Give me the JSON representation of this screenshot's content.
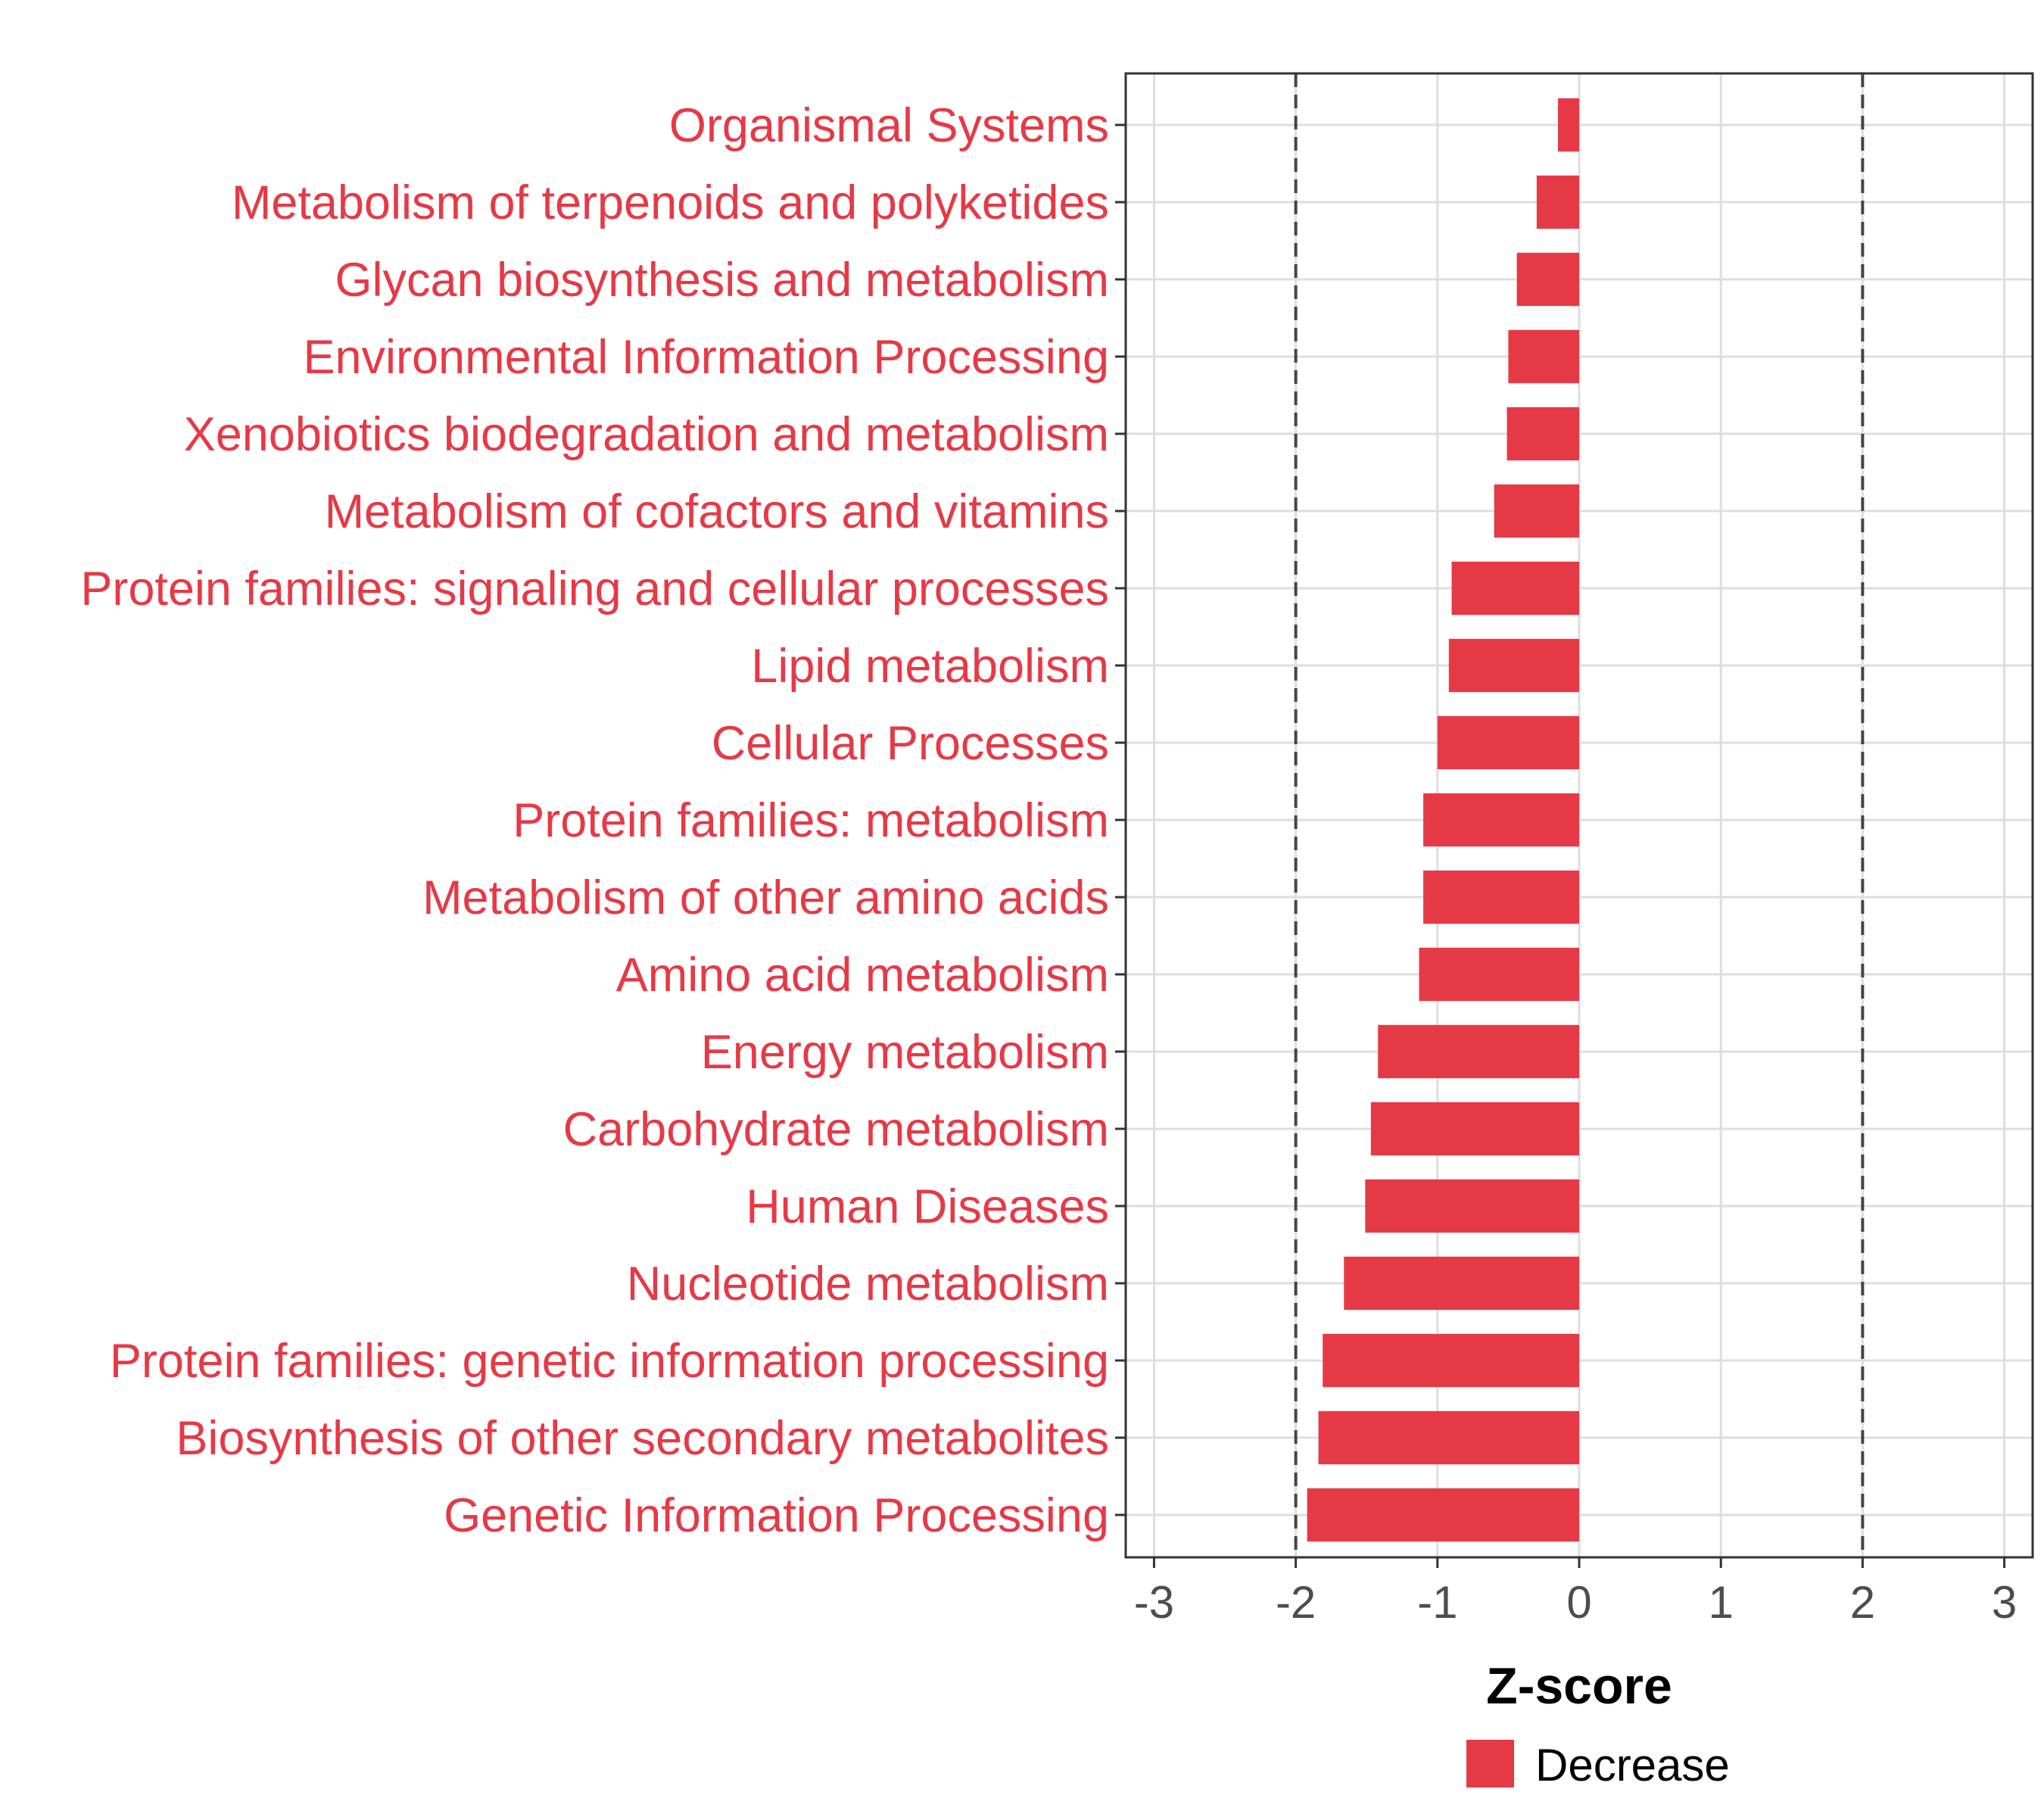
{
  "chart_data": {
    "type": "bar",
    "orientation": "horizontal",
    "xlabel": "Z-score",
    "ylabel": "",
    "xlim": [
      -3.2,
      3.2
    ],
    "xticks": [
      -3,
      -2,
      -1,
      0,
      1,
      2,
      3
    ],
    "reference_lines": [
      -2,
      2
    ],
    "grid": true,
    "categories": [
      "Organismal Systems",
      "Metabolism of terpenoids and polyketides",
      "Glycan biosynthesis and metabolism",
      "Environmental Information Processing",
      "Xenobiotics biodegradation and metabolism",
      "Metabolism of cofactors and vitamins",
      "Protein families: signaling and cellular processes",
      "Lipid metabolism",
      "Cellular Processes",
      "Protein families: metabolism",
      "Metabolism of other amino acids",
      "Amino acid metabolism",
      "Energy metabolism",
      "Carbohydrate metabolism",
      "Human Diseases",
      "Nucleotide metabolism",
      "Protein families: genetic information processing",
      "Biosynthesis of other secondary metabolites",
      "Genetic Information Processing"
    ],
    "values": [
      -0.15,
      -0.3,
      -0.44,
      -0.5,
      -0.51,
      -0.6,
      -0.9,
      -0.92,
      -1.0,
      -1.1,
      -1.1,
      -1.13,
      -1.42,
      -1.47,
      -1.51,
      -1.66,
      -1.81,
      -1.84,
      -1.92
    ],
    "series": [
      {
        "name": "Decrease",
        "color": "#E63946"
      }
    ],
    "legend": {
      "position": "bottom",
      "entries": [
        "Decrease"
      ]
    },
    "colors": {
      "bar": "#E63946",
      "label": "#E63946",
      "grid": "#dedede",
      "panel_border": "#333333",
      "reference_line": "#444444"
    }
  }
}
